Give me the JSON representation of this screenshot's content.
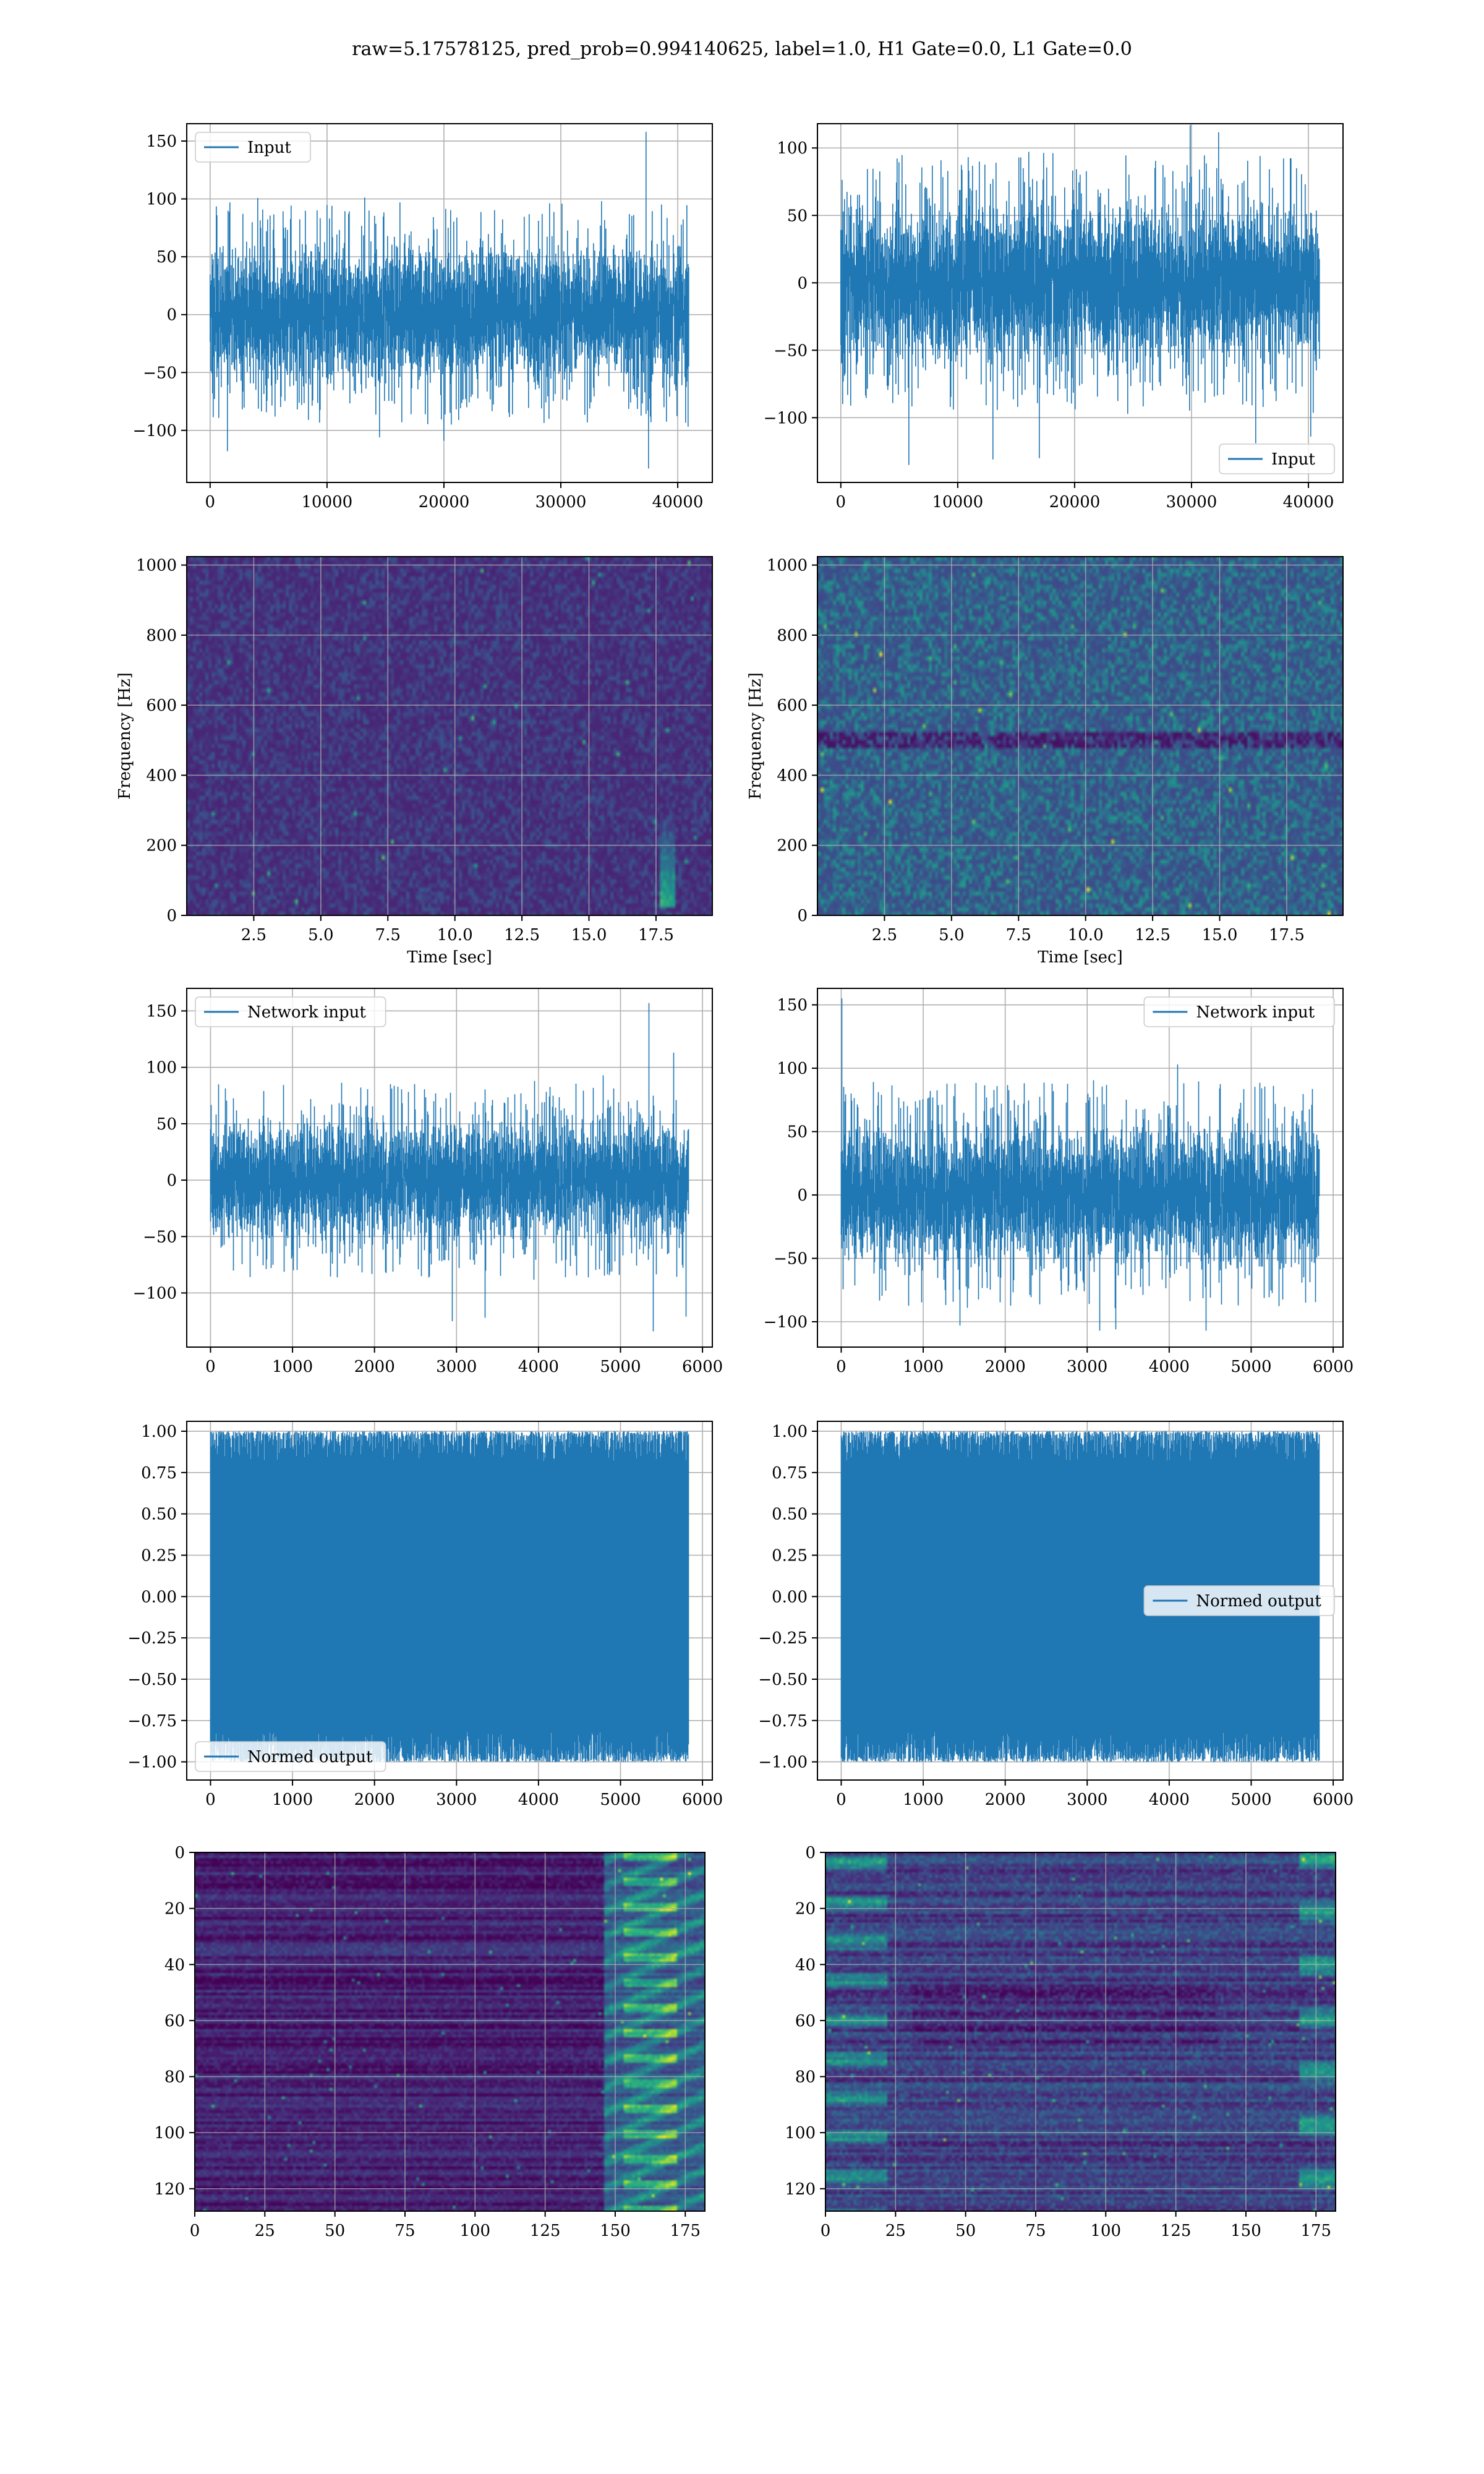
{
  "figure": {
    "suptitle": "raw=5.17578125, pred_prob=0.994140625, label=1.0, H1 Gate=0.0, L1 Gate=0.0"
  },
  "colors": {
    "line": "#1f77b4",
    "grid": "#b0b0b0",
    "viridis_low": "#440154",
    "viridis_mid": "#21918c",
    "viridis_high": "#fde725"
  },
  "chart_data": [
    {
      "id": "raw-h1",
      "type": "line",
      "series": [
        {
          "name": "Input",
          "style": "dense noise, |amp| mostly < 90, peak ~158 near x=37300, dip ~-133 near x=37500"
        }
      ],
      "legend": {
        "label": "Input",
        "position": "top-left"
      },
      "xlim": [
        -2000,
        42960
      ],
      "ylim": [
        -145,
        165
      ],
      "xticks": [
        0,
        10000,
        20000,
        30000,
        40000
      ],
      "yticks": [
        -100,
        -50,
        0,
        50,
        100,
        150
      ],
      "xlabel": "",
      "ylabel": "",
      "grid": true
    },
    {
      "id": "raw-l1",
      "type": "line",
      "series": [
        {
          "name": "Input",
          "style": "dense noise, |amp| mostly < 90, peak ~117 near x=29900, dip ~-135 near x=5800"
        }
      ],
      "legend": {
        "label": "Input",
        "position": "bottom-right"
      },
      "xlim": [
        -2000,
        42960
      ],
      "ylim": [
        -148,
        118
      ],
      "xticks": [
        0,
        10000,
        20000,
        30000,
        40000
      ],
      "yticks": [
        -100,
        -50,
        0,
        50,
        100
      ],
      "xlabel": "",
      "ylabel": "",
      "grid": true
    },
    {
      "id": "spec-h1",
      "type": "heatmap",
      "cmap": "viridis",
      "note": "mostly dark purple noise; faint vertical excitation near t=18 s, 20-280 Hz",
      "xlim": [
        0,
        19.6
      ],
      "ylim": [
        0,
        1024
      ],
      "xticks": [
        2.5,
        5.0,
        7.5,
        10.0,
        12.5,
        15.0,
        17.5
      ],
      "yticks": [
        0,
        200,
        400,
        600,
        800,
        1000
      ],
      "xlabel": "Time [sec]",
      "ylabel": "Frequency [Hz]",
      "grid": true
    },
    {
      "id": "spec-l1",
      "type": "heatmap",
      "cmap": "viridis",
      "note": "brighter speckled noise; dark horizontal band near 500 Hz",
      "xlim": [
        0,
        19.6
      ],
      "ylim": [
        0,
        1024
      ],
      "xticks": [
        2.5,
        5.0,
        7.5,
        10.0,
        12.5,
        15.0,
        17.5
      ],
      "yticks": [
        0,
        200,
        400,
        600,
        800,
        1000
      ],
      "xlabel": "Time [sec]",
      "ylabel": "Frequency [Hz]",
      "grid": true
    },
    {
      "id": "net-h1",
      "type": "line",
      "series": [
        {
          "name": "Network input",
          "style": "noise, |amp| mostly < 85, spike ~157 near x=5350, dip ~-134 near x=5400"
        }
      ],
      "legend": {
        "label": "Network input",
        "position": "top-left"
      },
      "xlim": [
        -290,
        6120
      ],
      "ylim": [
        -148,
        170
      ],
      "xticks": [
        0,
        1000,
        2000,
        3000,
        4000,
        5000,
        6000
      ],
      "yticks": [
        -100,
        -50,
        0,
        50,
        100,
        150
      ],
      "xlabel": "",
      "ylabel": "",
      "grid": true
    },
    {
      "id": "net-l1",
      "type": "line",
      "series": [
        {
          "name": "Network input",
          "style": "noise, |amp| mostly < 90, spike ~155 at x=10, peak ~103 near x=4100"
        }
      ],
      "legend": {
        "label": "Network input",
        "position": "top-right"
      },
      "xlim": [
        -290,
        6120
      ],
      "ylim": [
        -120,
        163
      ],
      "xticks": [
        0,
        1000,
        2000,
        3000,
        4000,
        5000,
        6000
      ],
      "yticks": [
        -100,
        -50,
        0,
        50,
        100,
        150
      ],
      "xlabel": "",
      "ylabel": "",
      "grid": true
    },
    {
      "id": "norm-h1",
      "type": "line",
      "series": [
        {
          "name": "Normed output",
          "style": "values saturate between -1 and 1"
        }
      ],
      "legend": {
        "label": "Normed output",
        "position": "bottom-left"
      },
      "xlim": [
        -290,
        6120
      ],
      "ylim": [
        -1.11,
        1.06
      ],
      "xticks": [
        0,
        1000,
        2000,
        3000,
        4000,
        5000,
        6000
      ],
      "yticks": [
        -1.0,
        -0.75,
        -0.5,
        -0.25,
        0.0,
        0.25,
        0.5,
        0.75,
        1.0
      ],
      "xlabel": "",
      "ylabel": "",
      "grid": true
    },
    {
      "id": "norm-l1",
      "type": "line",
      "series": [
        {
          "name": "Normed output",
          "style": "values saturate between -1 and 1"
        }
      ],
      "legend": {
        "label": "Normed output",
        "position": "center-right"
      },
      "xlim": [
        -290,
        6120
      ],
      "ylim": [
        -1.11,
        1.06
      ],
      "xticks": [
        0,
        1000,
        2000,
        3000,
        4000,
        5000,
        6000
      ],
      "yticks": [
        -1.0,
        -0.75,
        -0.5,
        -0.25,
        0.0,
        0.25,
        0.5,
        0.75,
        1.0
      ],
      "xlabel": "",
      "ylabel": "",
      "grid": true
    },
    {
      "id": "feat-h1",
      "type": "heatmap",
      "cmap": "viridis",
      "note": "128 x 182 feature map; dark left, bright green/yellow activations at columns 150-180",
      "xlim": [
        0,
        182
      ],
      "ylim": [
        128,
        0
      ],
      "xticks": [
        0,
        25,
        50,
        75,
        100,
        125,
        150,
        175
      ],
      "yticks": [
        0,
        20,
        40,
        60,
        80,
        100,
        120
      ],
      "xlabel": "",
      "ylabel": "",
      "grid": true
    },
    {
      "id": "feat-l1",
      "type": "heatmap",
      "cmap": "viridis",
      "note": "128 x 182 feature map; horizontal streaks, bright at columns 0-20 and 170-182",
      "xlim": [
        0,
        182
      ],
      "ylim": [
        128,
        0
      ],
      "xticks": [
        0,
        25,
        50,
        75,
        100,
        125,
        150,
        175
      ],
      "yticks": [
        0,
        20,
        40,
        60,
        80,
        100,
        120
      ],
      "xlabel": "",
      "ylabel": "",
      "grid": true
    }
  ]
}
